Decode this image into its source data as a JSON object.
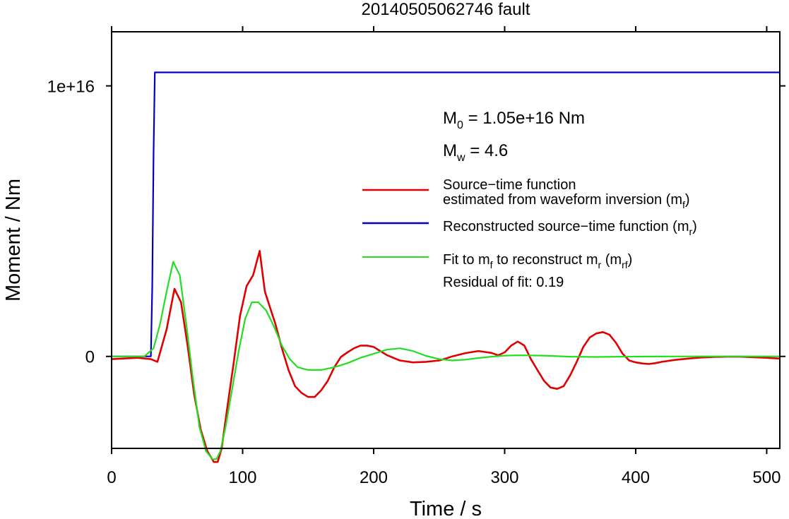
{
  "chart_data": {
    "type": "line",
    "title": "20140505062746 fault",
    "xlabel": "Time / s",
    "ylabel": "Moment / Nm",
    "xlim": [
      0,
      510
    ],
    "ylim": [
      -3400000000000000.0,
      1.2e+16
    ],
    "xticks": [
      0,
      100,
      200,
      300,
      400,
      500
    ],
    "xtick_labels": [
      "0",
      "100",
      "200",
      "300",
      "400",
      "500"
    ],
    "yticks": [
      0,
      1e+16
    ],
    "ytick_labels": [
      "0",
      "1e+16"
    ],
    "grid": false,
    "legend_position": "top-right",
    "annotations": [
      {
        "base": "M",
        "sub": "0",
        "rest": " = 1.05e+16 Nm"
      },
      {
        "base": "M",
        "sub": "w",
        "rest": " = 4.6"
      }
    ],
    "legend": [
      {
        "color": "#e00000",
        "parts": [
          {
            "line": 1,
            "text": "Source−time function"
          },
          {
            "line": 2,
            "text": "estimated from waveform inversion (m"
          },
          {
            "line": 2,
            "sub": "f"
          },
          {
            "line": 2,
            "text": ")"
          }
        ]
      },
      {
        "color": "#0000c8",
        "parts": [
          {
            "line": 1,
            "text": "Reconstructed source−time function (m"
          },
          {
            "line": 1,
            "sub": "r"
          },
          {
            "line": 1,
            "text": ")"
          }
        ]
      },
      {
        "color": "#22dd22",
        "parts": [
          {
            "line": 1,
            "text": "Fit to m"
          },
          {
            "line": 1,
            "sub": "f"
          },
          {
            "line": 1,
            "text": " to reconstruct m"
          },
          {
            "line": 1,
            "sub": "r"
          },
          {
            "line": 1,
            "text": " (m"
          },
          {
            "line": 1,
            "sub": "rf"
          },
          {
            "line": 1,
            "text": ")"
          }
        ]
      }
    ],
    "residual_note": "Residual of fit: 0.19",
    "series": [
      {
        "name": "Reconstructed source−time function",
        "color": "#0000c8",
        "x": [
          0,
          30,
          31,
          32,
          33,
          510
        ],
        "y": [
          0,
          0,
          2500000000000000.0,
          7500000000000000.0,
          1.05e+16,
          1.05e+16
        ]
      },
      {
        "name": "Source−time function estimated from waveform inversion",
        "color": "#e00000",
        "x": [
          0,
          20,
          30,
          35,
          42,
          48,
          53,
          58,
          63,
          68,
          73,
          78,
          81,
          84,
          88,
          93,
          98,
          103,
          108,
          113,
          117,
          121,
          125,
          130,
          135,
          140,
          145,
          150,
          155,
          160,
          165,
          170,
          175,
          180,
          185,
          190,
          195,
          200,
          205,
          210,
          215,
          220,
          230,
          240,
          250,
          255,
          260,
          270,
          280,
          290,
          295,
          300,
          305,
          310,
          315,
          320,
          325,
          330,
          335,
          340,
          345,
          350,
          355,
          360,
          365,
          370,
          375,
          380,
          385,
          390,
          395,
          400,
          405,
          410,
          415,
          420,
          430,
          440,
          450,
          460,
          470,
          480,
          490,
          500,
          510
        ],
        "y": [
          -100000000000000.0,
          -50000000000000.0,
          -100000000000000.0,
          -200000000000000.0,
          1000000000000000.0,
          2500000000000000.0,
          2000000000000000.0,
          400000000000000.0,
          -1400000000000000.0,
          -2700000000000000.0,
          -3500000000000000.0,
          -3900000000000000.0,
          -3900000000000000.0,
          -3400000000000000.0,
          -2000000000000000.0,
          -300000000000000.0,
          1500000000000000.0,
          2600000000000000.0,
          3000000000000000.0,
          3900000000000000.0,
          2400000000000000.0,
          1800000000000000.0,
          1200000000000000.0,
          300000000000000.0,
          -500000000000000.0,
          -1100000000000000.0,
          -1350000000000000.0,
          -1500000000000000.0,
          -1500000000000000.0,
          -1250000000000000.0,
          -900000000000000.0,
          -400000000000000.0,
          -20000000000000.0,
          150000000000000.0,
          300000000000000.0,
          400000000000000.0,
          400000000000000.0,
          350000000000000.0,
          200000000000000.0,
          50000000000000.0,
          -50000000000000.0,
          -150000000000000.0,
          -220000000000000.0,
          -200000000000000.0,
          -150000000000000.0,
          -80000000000000.0,
          0,
          120000000000000.0,
          200000000000000.0,
          130000000000000.0,
          40000000000000.0,
          150000000000000.0,
          400000000000000.0,
          550000000000000.0,
          400000000000000.0,
          -100000000000000.0,
          -500000000000000.0,
          -900000000000000.0,
          -1150000000000000.0,
          -1200000000000000.0,
          -1100000000000000.0,
          -700000000000000.0,
          -200000000000000.0,
          350000000000000.0,
          700000000000000.0,
          850000000000000.0,
          900000000000000.0,
          800000000000000.0,
          500000000000000.0,
          100000000000000.0,
          -150000000000000.0,
          -220000000000000.0,
          -260000000000000.0,
          -280000000000000.0,
          -250000000000000.0,
          -200000000000000.0,
          -130000000000000.0,
          -80000000000000.0,
          -40000000000000.0,
          -20000000000000.0,
          -10000000000000.0,
          -10000000000000.0,
          -30000000000000.0,
          -50000000000000.0,
          -80000000000000.0
        ]
      },
      {
        "name": "Fit to mf to reconstruct mr",
        "color": "#22dd22",
        "x": [
          0,
          25,
          32,
          37,
          42,
          47,
          52,
          57,
          62,
          67,
          72,
          77,
          80,
          83,
          87,
          92,
          97,
          102,
          107,
          112,
          118,
          124,
          130,
          136,
          142,
          150,
          160,
          170,
          180,
          190,
          200,
          210,
          220,
          230,
          240,
          250,
          260,
          270,
          280,
          290,
          300,
          310,
          330,
          350,
          370,
          390,
          410,
          450,
          510
        ],
        "y": [
          0,
          0,
          300000000000000.0,
          1200000000000000.0,
          2400000000000000.0,
          3500000000000000.0,
          3000000000000000.0,
          1200000000000000.0,
          -800000000000000.0,
          -2600000000000000.0,
          -3500000000000000.0,
          -3800000000000000.0,
          -3800000000000000.0,
          -3500000000000000.0,
          -2600000000000000.0,
          -1200000000000000.0,
          200000000000000.0,
          1400000000000000.0,
          2000000000000000.0,
          2000000000000000.0,
          1700000000000000.0,
          1100000000000000.0,
          400000000000000.0,
          -100000000000000.0,
          -400000000000000.0,
          -500000000000000.0,
          -500000000000000.0,
          -400000000000000.0,
          -250000000000000.0,
          -50000000000000.0,
          100000000000000.0,
          250000000000000.0,
          300000000000000.0,
          200000000000000.0,
          20000000000000.0,
          -100000000000000.0,
          -150000000000000.0,
          -120000000000000.0,
          -60000000000000.0,
          -10000000000000.0,
          30000000000000.0,
          40000000000000.0,
          30000000000000.0,
          -10000000000000.0,
          -20000000000000.0,
          -10000000000000.0,
          -5000000000000.0,
          0,
          0
        ]
      }
    ]
  }
}
